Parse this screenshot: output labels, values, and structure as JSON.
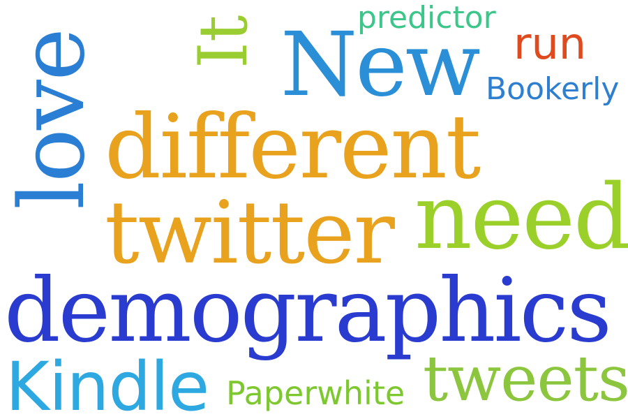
{
  "cloud": {
    "words": {
      "love": {
        "text": "love",
        "color": "#2a7fd4"
      },
      "it": {
        "text": "It",
        "color": "#9acd32"
      },
      "predictor": {
        "text": "predictor",
        "color": "#3cc68a"
      },
      "run": {
        "text": "run",
        "color": "#e04a1f"
      },
      "new": {
        "text": "New",
        "color": "#2a8fd6"
      },
      "bookerly": {
        "text": "Bookerly",
        "color": "#2e7fd0"
      },
      "different": {
        "text": "different",
        "color": "#e8a21e"
      },
      "twitter": {
        "text": "twitter",
        "color": "#e8a21e"
      },
      "need": {
        "text": "need",
        "color": "#9bd02a"
      },
      "demographics": {
        "text": "demographics",
        "color": "#2a3ccf"
      },
      "kindle": {
        "text": "Kindle",
        "color": "#2ea8e0"
      },
      "paperwhite": {
        "text": "Paperwhite",
        "color": "#7dc82e"
      },
      "tweets": {
        "text": "tweets",
        "color": "#8cc63e"
      }
    }
  }
}
